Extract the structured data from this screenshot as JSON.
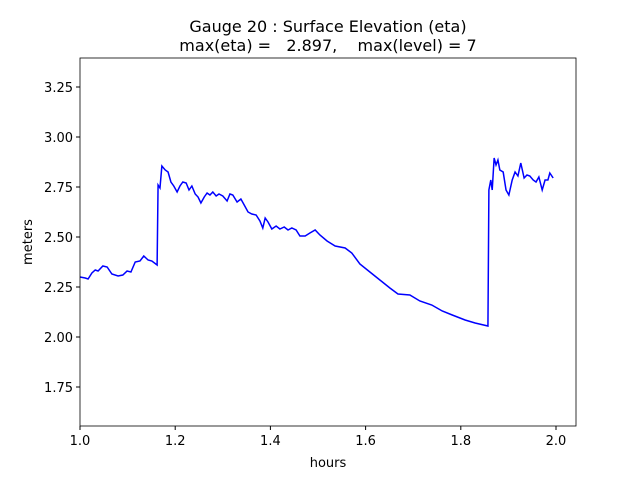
{
  "chart_data": {
    "type": "line",
    "title": "Gauge 20 : Surface Elevation (eta)",
    "subtitle": "max(eta) =   2.897,    max(level) = 7",
    "xlabel": "hours",
    "ylabel": "meters",
    "xlim": [
      1.0,
      2.042
    ],
    "ylim": [
      1.555,
      3.395
    ],
    "xticks": [
      {
        "value": 1.0,
        "label": "1.0"
      },
      {
        "value": 1.2,
        "label": "1.2"
      },
      {
        "value": 1.4,
        "label": "1.4"
      },
      {
        "value": 1.6,
        "label": "1.6"
      },
      {
        "value": 1.8,
        "label": "1.8"
      },
      {
        "value": 2.0,
        "label": "2.0"
      }
    ],
    "yticks": [
      {
        "value": 1.75,
        "label": "1.75"
      },
      {
        "value": 2.0,
        "label": "2.00"
      },
      {
        "value": 2.25,
        "label": "2.25"
      },
      {
        "value": 2.5,
        "label": "2.50"
      },
      {
        "value": 2.75,
        "label": "2.75"
      },
      {
        "value": 3.0,
        "label": "3.00"
      },
      {
        "value": 3.25,
        "label": "3.25"
      }
    ],
    "x": [
      1.0,
      1.011,
      1.017,
      1.025,
      1.032,
      1.038,
      1.048,
      1.057,
      1.067,
      1.08,
      1.09,
      1.099,
      1.107,
      1.116,
      1.126,
      1.134,
      1.143,
      1.151,
      1.162,
      1.164,
      1.168,
      1.172,
      1.179,
      1.185,
      1.191,
      1.197,
      1.204,
      1.21,
      1.216,
      1.223,
      1.229,
      1.235,
      1.242,
      1.248,
      1.254,
      1.261,
      1.267,
      1.273,
      1.279,
      1.286,
      1.292,
      1.3,
      1.309,
      1.315,
      1.321,
      1.33,
      1.338,
      1.345,
      1.353,
      1.361,
      1.37,
      1.378,
      1.384,
      1.389,
      1.395,
      1.403,
      1.412,
      1.42,
      1.429,
      1.437,
      1.445,
      1.454,
      1.462,
      1.473,
      1.483,
      1.494,
      1.504,
      1.519,
      1.536,
      1.557,
      1.571,
      1.588,
      1.609,
      1.63,
      1.651,
      1.668,
      1.693,
      1.714,
      1.739,
      1.761,
      1.782,
      1.809,
      1.83,
      1.857,
      1.859,
      1.863,
      1.866,
      1.87,
      1.874,
      1.878,
      1.882,
      1.889,
      1.895,
      1.901,
      1.908,
      1.914,
      1.92,
      1.926,
      1.933,
      1.939,
      1.945,
      1.952,
      1.958,
      1.964,
      1.971,
      1.977,
      1.983,
      1.987,
      1.994
    ],
    "series": [
      {
        "color": "#0000ff",
        "values": [
          2.3,
          2.295,
          2.29,
          2.32,
          2.335,
          2.33,
          2.355,
          2.35,
          2.315,
          2.305,
          2.31,
          2.33,
          2.325,
          2.375,
          2.38,
          2.405,
          2.385,
          2.38,
          2.36,
          2.76,
          2.745,
          2.855,
          2.835,
          2.825,
          2.775,
          2.755,
          2.725,
          2.755,
          2.775,
          2.77,
          2.735,
          2.755,
          2.715,
          2.7,
          2.67,
          2.7,
          2.72,
          2.71,
          2.725,
          2.705,
          2.715,
          2.705,
          2.68,
          2.715,
          2.71,
          2.675,
          2.69,
          2.66,
          2.625,
          2.615,
          2.61,
          2.58,
          2.545,
          2.595,
          2.575,
          2.54,
          2.555,
          2.54,
          2.55,
          2.535,
          2.545,
          2.535,
          2.505,
          2.505,
          2.52,
          2.535,
          2.51,
          2.48,
          2.455,
          2.445,
          2.42,
          2.365,
          2.325,
          2.285,
          2.245,
          2.215,
          2.21,
          2.18,
          2.16,
          2.13,
          2.11,
          2.085,
          2.07,
          2.055,
          2.735,
          2.785,
          2.735,
          2.895,
          2.86,
          2.885,
          2.835,
          2.825,
          2.735,
          2.71,
          2.785,
          2.825,
          2.805,
          2.87,
          2.795,
          2.81,
          2.805,
          2.785,
          2.775,
          2.8,
          2.735,
          2.785,
          2.785,
          2.82,
          2.795
        ]
      }
    ]
  }
}
